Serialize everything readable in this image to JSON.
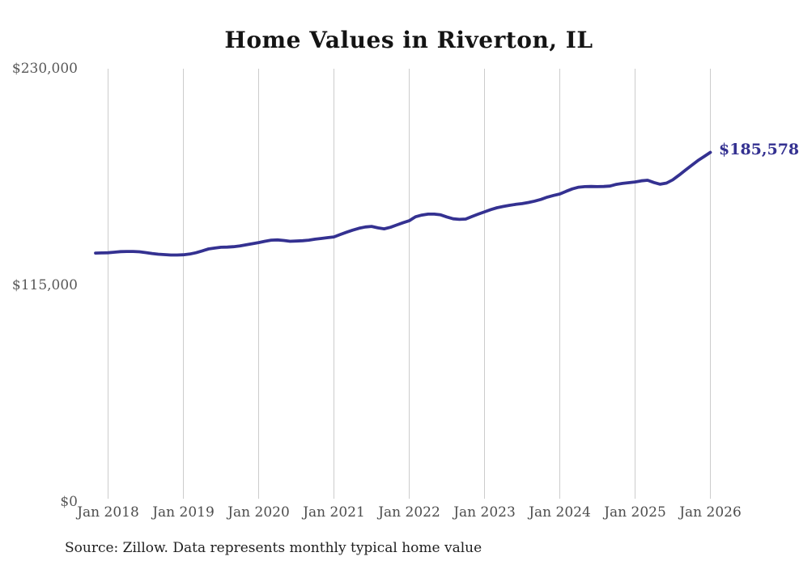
{
  "page": {
    "background": "#ffffff"
  },
  "chart_data": {
    "type": "line",
    "title": "Home Values in Riverton, IL",
    "source_note": "Source: Zillow. Data represents monthly typical home value",
    "end_label": "$185,578",
    "last_value": 185578,
    "ylim": [
      0,
      230000
    ],
    "grid": "vertical-year-lines-only",
    "legend": "none",
    "line_color": "#343191",
    "grid_color": "#cccccc",
    "axis_text_color": "#555555",
    "x_ticks": [
      "Jan 2018",
      "Jan 2019",
      "Jan 2020",
      "Jan 2021",
      "Jan 2022",
      "Jan 2023",
      "Jan 2024",
      "Jan 2025",
      "Jan 2026"
    ],
    "y_ticks": [
      {
        "label": "$230,000",
        "value": 230000
      },
      {
        "label": "$115,000",
        "value": 115000
      },
      {
        "label": "$0",
        "value": 0
      }
    ],
    "series": [
      {
        "name": "Monthly typical home value",
        "x_start": "Nov 2017",
        "frequency": "monthly",
        "values": [
          132100,
          132200,
          132300,
          132600,
          132900,
          133000,
          133000,
          132800,
          132400,
          131900,
          131500,
          131300,
          131100,
          131100,
          131200,
          131600,
          132300,
          133300,
          134300,
          134800,
          135200,
          135300,
          135500,
          135900,
          136500,
          137100,
          137700,
          138400,
          139000,
          139100,
          138800,
          138400,
          138500,
          138700,
          139000,
          139500,
          139900,
          140300,
          140700,
          142000,
          143200,
          144300,
          145300,
          146000,
          146300,
          145500,
          145000,
          145800,
          147000,
          148200,
          149300,
          151400,
          152300,
          152800,
          152800,
          152400,
          151300,
          150300,
          150000,
          150200,
          151500,
          152800,
          154000,
          155200,
          156200,
          156900,
          157500,
          158000,
          158400,
          159000,
          159700,
          160600,
          161800,
          162700,
          163500,
          164900,
          166200,
          167100,
          167400,
          167500,
          167400,
          167500,
          167700,
          168600,
          169100,
          169500,
          169900,
          170500,
          170800,
          169600,
          168700,
          169300,
          171000,
          173500,
          176100,
          178700,
          181200,
          183400,
          185578
        ]
      }
    ]
  }
}
